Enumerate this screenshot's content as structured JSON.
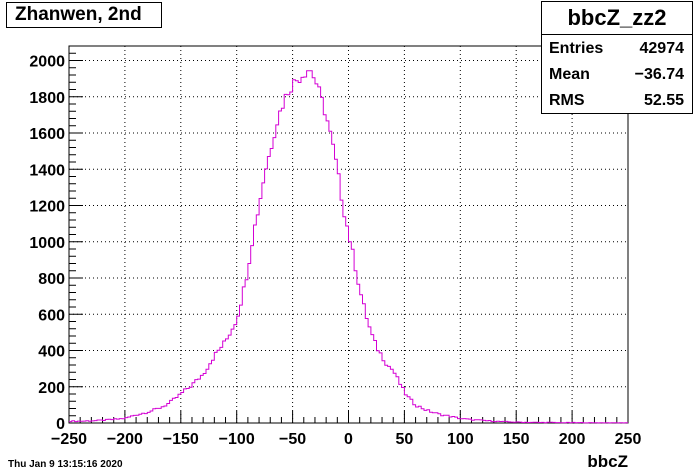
{
  "title": "Zhanwen, 2nd",
  "stats": {
    "name": "bbcZ_zz2",
    "rows": [
      {
        "label": "Entries",
        "value": "42974"
      },
      {
        "label": "Mean",
        "value": "−36.74"
      },
      {
        "label": "RMS",
        "value": "52.55"
      }
    ]
  },
  "timestamp": "Thu Jan  9 13:15:16 2020",
  "colors": {
    "histogram": "#d400d4",
    "grid": "#000000"
  },
  "chart_data": {
    "type": "line",
    "xlabel": "bbcZ",
    "ylabel": "",
    "xlim": [
      -250,
      250
    ],
    "ylim": [
      0,
      2080
    ],
    "xticks": [
      -250,
      -200,
      -150,
      -100,
      -50,
      0,
      50,
      100,
      150,
      200,
      250
    ],
    "yticks": [
      0,
      200,
      400,
      600,
      800,
      1000,
      1200,
      1400,
      1600,
      1800,
      2000
    ],
    "grid": true,
    "bin_width": 2.5,
    "series": [
      {
        "x": [
          -250,
          -240,
          -230,
          -220,
          -210,
          -200,
          -190,
          -180,
          -170,
          -160,
          -150,
          -140,
          -130,
          -120,
          -110,
          -100,
          -95,
          -90,
          -85,
          -80,
          -75,
          -70,
          -65,
          -60,
          -55,
          -50,
          -45,
          -40,
          -35,
          -30,
          -25,
          -20,
          -15,
          -10,
          -5,
          0,
          5,
          10,
          15,
          20,
          25,
          30,
          35,
          40,
          45,
          50,
          55,
          60,
          70,
          80,
          90,
          100,
          110,
          120,
          130,
          140,
          150,
          160,
          170,
          180,
          190,
          200,
          210,
          220,
          230,
          240
        ],
        "values": [
          10,
          10,
          12,
          15,
          20,
          25,
          45,
          60,
          80,
          110,
          160,
          210,
          270,
          370,
          450,
          570,
          700,
          850,
          1050,
          1200,
          1380,
          1500,
          1640,
          1740,
          1820,
          1870,
          1900,
          1930,
          1960,
          1900,
          1800,
          1700,
          1560,
          1400,
          1200,
          1050,
          900,
          740,
          610,
          500,
          420,
          370,
          320,
          290,
          230,
          170,
          130,
          100,
          70,
          50,
          38,
          25,
          18,
          14,
          10,
          7,
          5,
          4,
          3,
          3,
          2,
          2,
          2,
          1,
          1,
          1
        ]
      }
    ]
  }
}
